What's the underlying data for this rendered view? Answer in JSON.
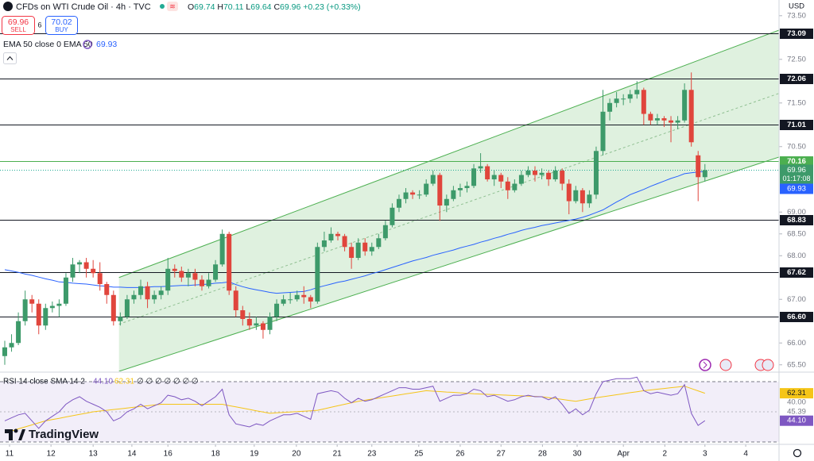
{
  "chart_data": {
    "type": "candlestick",
    "title": "CFDs on WTI Crude Oil · 4h · TVC",
    "ohlc": [
      {
        "key": "O",
        "value": "69.74"
      },
      {
        "key": "H",
        "value": "70.11"
      },
      {
        "key": "L",
        "value": "69.64"
      },
      {
        "key": "C",
        "value": "69.96"
      }
    ],
    "change": "+0.23 (+0.33%)",
    "sell": {
      "price": "69.96",
      "label": "SELL"
    },
    "spread": "6",
    "buy": {
      "price": "70.02",
      "label": "BUY"
    },
    "currency": "USD",
    "brand": "TradingView",
    "up_color": "#3d9a6a",
    "down_color": "#e0453c",
    "open": [
      65.7,
      65.9,
      66.0,
      66.5,
      67.0,
      66.9,
      66.4,
      66.8,
      66.85,
      66.9,
      67.5,
      67.8,
      67.85,
      67.7,
      67.6,
      67.35,
      67.1,
      66.5,
      66.6,
      67.0,
      67.1,
      67.3,
      67.0,
      67.1,
      67.2,
      67.7,
      67.65,
      67.5,
      67.6,
      67.45,
      67.3,
      67.45,
      67.8,
      68.5,
      67.2,
      66.75,
      66.55,
      66.4,
      66.45,
      66.3,
      66.6,
      66.9,
      67.0,
      67.0,
      67.1,
      67.05,
      66.95,
      68.2,
      68.35,
      68.5,
      68.45,
      68.2,
      67.95,
      68.3,
      68.1,
      68.2,
      68.4,
      68.7,
      69.1,
      69.3,
      69.45,
      69.4,
      69.4,
      69.65,
      69.85,
      69.15,
      69.3,
      69.5,
      69.55,
      69.6,
      70.0,
      70.05,
      69.75,
      69.85,
      69.7,
      69.5,
      69.65,
      69.85,
      69.95,
      69.85,
      69.9,
      69.75,
      69.95,
      69.65,
      69.25,
      69.5,
      69.2,
      69.4,
      70.4,
      71.3,
      71.5,
      71.6,
      71.6,
      71.7,
      71.8,
      71.25,
      71.1,
      71.15,
      71.1,
      71.05,
      71.1,
      71.8,
      70.3,
      69.8
    ],
    "high": [
      66.05,
      66.2,
      66.7,
      67.2,
      67.1,
      67.0,
      66.9,
      66.95,
      67.0,
      67.6,
      67.95,
      67.9,
      67.95,
      67.9,
      67.85,
      67.4,
      67.2,
      66.7,
      67.1,
      67.2,
      67.45,
      67.4,
      67.2,
      67.3,
      67.95,
      67.8,
      67.75,
      67.7,
      67.7,
      67.55,
      67.6,
      67.9,
      68.6,
      68.55,
      67.3,
      66.85,
      66.7,
      66.6,
      66.5,
      66.7,
      67.0,
      67.1,
      67.15,
      67.2,
      67.3,
      67.1,
      68.3,
      68.55,
      68.65,
      68.55,
      68.5,
      68.3,
      68.4,
      68.4,
      68.3,
      68.5,
      68.8,
      69.2,
      69.4,
      69.55,
      69.5,
      69.5,
      69.75,
      69.95,
      69.9,
      69.4,
      69.6,
      69.65,
      69.7,
      70.1,
      70.35,
      70.1,
      69.95,
      69.9,
      69.8,
      69.75,
      69.95,
      70.05,
      70.05,
      70.0,
      69.95,
      70.05,
      70.0,
      69.75,
      69.6,
      69.55,
      69.5,
      70.5,
      71.8,
      71.6,
      71.75,
      71.7,
      71.8,
      72.0,
      71.85,
      71.3,
      71.25,
      71.2,
      71.2,
      71.2,
      71.95,
      72.2,
      70.4,
      70.1
    ],
    "low": [
      65.5,
      65.8,
      65.95,
      66.4,
      66.7,
      66.2,
      66.3,
      66.7,
      66.6,
      66.85,
      67.4,
      67.6,
      67.5,
      67.5,
      67.2,
      66.9,
      66.4,
      66.4,
      66.55,
      66.9,
      67.0,
      66.8,
      66.9,
      67.0,
      67.1,
      67.5,
      67.4,
      67.3,
      67.3,
      67.2,
      67.25,
      67.4,
      67.75,
      67.1,
      66.6,
      66.4,
      66.3,
      66.3,
      66.1,
      66.2,
      66.5,
      66.85,
      66.9,
      66.95,
      66.9,
      66.8,
      66.9,
      68.1,
      68.3,
      68.35,
      68.1,
      67.7,
      67.9,
      68.0,
      68.0,
      68.15,
      68.35,
      68.65,
      69.0,
      69.2,
      69.3,
      69.3,
      69.35,
      69.6,
      68.8,
      69.0,
      69.25,
      69.35,
      69.45,
      69.55,
      69.9,
      69.7,
      69.6,
      69.55,
      69.3,
      69.45,
      69.6,
      69.8,
      69.7,
      69.75,
      69.6,
      69.7,
      69.5,
      68.95,
      69.2,
      69.0,
      69.1,
      69.3,
      70.3,
      71.1,
      71.4,
      71.45,
      71.5,
      71.6,
      71.0,
      71.0,
      71.0,
      70.95,
      70.6,
      70.9,
      71.05,
      70.5,
      69.25,
      69.7
    ],
    "close": [
      65.9,
      66.0,
      66.5,
      67.0,
      66.9,
      66.4,
      66.8,
      66.85,
      66.9,
      67.5,
      67.8,
      67.85,
      67.7,
      67.6,
      67.35,
      67.1,
      66.5,
      66.6,
      67.0,
      67.1,
      67.3,
      67.0,
      67.1,
      67.2,
      67.7,
      67.65,
      67.5,
      67.6,
      67.45,
      67.3,
      67.45,
      67.8,
      68.5,
      67.2,
      66.75,
      66.55,
      66.4,
      66.45,
      66.3,
      66.6,
      66.9,
      67.0,
      67.0,
      67.1,
      67.05,
      66.95,
      68.2,
      68.35,
      68.5,
      68.45,
      68.2,
      67.95,
      68.3,
      68.1,
      68.2,
      68.4,
      68.7,
      69.1,
      69.3,
      69.45,
      69.4,
      69.4,
      69.65,
      69.85,
      69.15,
      69.3,
      69.5,
      69.55,
      69.6,
      70.0,
      70.05,
      69.75,
      69.85,
      69.7,
      69.5,
      69.65,
      69.85,
      69.95,
      69.85,
      69.9,
      69.75,
      69.95,
      69.65,
      69.25,
      69.5,
      69.2,
      69.4,
      70.4,
      71.3,
      71.5,
      71.6,
      71.6,
      71.7,
      71.8,
      71.25,
      71.1,
      71.15,
      71.1,
      71.05,
      71.1,
      71.8,
      70.6,
      69.8,
      69.96
    ],
    "last_timer": "01:17:08",
    "ema": {
      "name": "EMA 50 close 0 EMA 50",
      "color": "#2962ff",
      "values": [
        67.68,
        67.65,
        67.62,
        67.58,
        67.55,
        67.51,
        67.47,
        67.44,
        67.4,
        67.39,
        67.37,
        67.36,
        67.35,
        67.33,
        67.31,
        67.3,
        67.28,
        67.28,
        67.27,
        67.27,
        67.27,
        67.28,
        67.29,
        67.29,
        67.3,
        67.31,
        67.32,
        67.32,
        67.33,
        67.34,
        67.35,
        67.37,
        67.38,
        67.4,
        67.34,
        67.29,
        67.25,
        67.22,
        67.19,
        67.16,
        67.14,
        67.15,
        67.16,
        67.17,
        67.18,
        67.22,
        67.27,
        67.31,
        67.35,
        67.39,
        67.42,
        67.46,
        67.5,
        67.54,
        67.59,
        67.63,
        67.68,
        67.73,
        67.78,
        67.83,
        67.88,
        67.92,
        67.96,
        68.01,
        68.05,
        68.09,
        68.13,
        68.18,
        68.22,
        68.26,
        68.31,
        68.35,
        68.4,
        68.44,
        68.49,
        68.53,
        68.58,
        68.62,
        68.65,
        68.69,
        68.72,
        68.75,
        68.78,
        68.81,
        68.84,
        68.88,
        68.93,
        68.99,
        69.05,
        69.14,
        69.23,
        69.31,
        69.4,
        69.46,
        69.52,
        69.59,
        69.65,
        69.71,
        69.77,
        69.82,
        69.88,
        69.9,
        69.92,
        69.93
      ]
    },
    "xlim": [
      -0.7,
      113.9
    ],
    "xticks": [
      {
        "value": 0.7,
        "label": "11"
      },
      {
        "value": 6.8,
        "label": "12"
      },
      {
        "value": 13.0,
        "label": "13"
      },
      {
        "value": 18.7,
        "label": "14"
      },
      {
        "value": 24.0,
        "label": "16"
      },
      {
        "value": 31.0,
        "label": "18"
      },
      {
        "value": 36.7,
        "label": "19"
      },
      {
        "value": 42.9,
        "label": "20"
      },
      {
        "value": 48.9,
        "label": "21"
      },
      {
        "value": 54.0,
        "label": "23"
      },
      {
        "value": 60.9,
        "label": "25"
      },
      {
        "value": 67.0,
        "label": "26"
      },
      {
        "value": 73.0,
        "label": "27"
      },
      {
        "value": 79.1,
        "label": "28"
      },
      {
        "value": 84.2,
        "label": "30"
      },
      {
        "value": 91.0,
        "label": "Apr"
      },
      {
        "value": 97.1,
        "label": "2"
      },
      {
        "value": 103.0,
        "label": "3"
      },
      {
        "value": 109.0,
        "label": "4"
      }
    ],
    "ylim": [
      65.35,
      73.86
    ],
    "yticks": [
      {
        "value": 73.5,
        "label": "73.50"
      },
      {
        "value": 72.5,
        "label": "72.50"
      },
      {
        "value": 71.5,
        "label": "71.50"
      },
      {
        "value": 70.5,
        "label": "70.50"
      },
      {
        "value": 69.0,
        "label": "69.00"
      },
      {
        "value": 68.5,
        "label": "68.50"
      },
      {
        "value": 68.0,
        "label": "68.00"
      },
      {
        "value": 67.0,
        "label": "67.00"
      },
      {
        "value": 66.0,
        "label": "66.00"
      },
      {
        "value": 65.5,
        "label": "65.50"
      }
    ],
    "levels": [
      {
        "value": 73.09,
        "color": "#131722"
      },
      {
        "value": 72.06,
        "color": "#131722"
      },
      {
        "value": 71.01,
        "color": "#131722"
      },
      {
        "value": 70.16,
        "color": "#4caf50"
      },
      {
        "value": 68.83,
        "color": "#131722"
      },
      {
        "value": 67.62,
        "color": "#131722"
      },
      {
        "value": {
          "value": 66.6,
          "label": "66.60"
        },
        "color": "#131722"
      }
    ],
    "channel": {
      "x": [
        16.8,
        113.9
      ],
      "upper": [
        67.5,
        73.17
      ],
      "middle": [
        66.43,
        71.72
      ],
      "lower": [
        65.35,
        70.26
      ],
      "color": "#4caf50"
    },
    "rsi": {
      "name": "RSI 14 close SMA 14 2",
      "color": "#7e57c2",
      "na": "∅ ∅ ∅ ∅ ∅ ∅ ∅",
      "values": [
        44,
        46,
        48,
        49,
        44,
        39,
        44,
        47,
        50,
        55,
        58,
        60,
        57,
        55,
        53,
        50,
        44,
        46,
        50,
        52,
        55,
        52,
        54,
        56,
        61,
        60,
        58,
        59,
        57,
        54,
        57,
        60,
        65,
        48,
        42,
        41,
        40,
        42,
        41,
        44,
        46,
        48,
        48,
        49,
        47,
        45,
        62,
        63,
        64,
        63,
        59,
        56,
        59,
        57,
        58,
        60,
        62,
        64,
        66,
        66,
        65,
        65,
        66,
        67,
        57,
        59,
        61,
        61,
        62,
        65,
        64,
        60,
        61,
        59,
        57,
        58,
        60,
        61,
        60,
        60,
        58,
        60,
        55,
        49,
        52,
        48,
        51,
        62,
        70,
        71,
        72,
        72,
        72,
        73,
        64,
        62,
        63,
        62,
        61,
        62,
        68,
        49,
        41,
        44.1
      ],
      "value_label": "44.10",
      "sma": {
        "color": "#f5c518",
        "values": [
          36,
          37.3,
          38.7,
          40,
          41.3,
          42.7,
          44,
          44.9,
          45.7,
          46.6,
          47.4,
          48.3,
          49.1,
          50,
          50.5,
          51,
          51.5,
          52,
          52.5,
          53,
          53.5,
          54,
          54.5,
          55,
          55,
          55,
          55,
          55,
          55,
          55,
          55,
          55,
          55,
          54.1,
          53.3,
          52.4,
          51.6,
          50.7,
          49.9,
          49,
          49.3,
          49.6,
          49.9,
          50.1,
          50.4,
          50.7,
          51,
          52,
          53,
          54,
          55,
          56,
          57,
          57.7,
          58.4,
          59.1,
          59.8,
          60.5,
          61.2,
          61.9,
          62.6,
          63.3,
          64,
          63.7,
          63.4,
          63.1,
          62.9,
          62.6,
          62.3,
          62,
          61.8,
          61.6,
          61.4,
          61.2,
          61,
          60.8,
          60.6,
          60.4,
          60.2,
          60,
          59.4,
          58.8,
          58.2,
          57.6,
          57,
          57.8,
          58.5,
          59.3,
          60,
          60.7,
          61.3,
          62,
          62.7,
          63.3,
          64,
          64.5,
          65,
          65.5,
          66,
          66.5,
          67,
          65.4,
          63.9,
          62.31
        ]
      },
      "ylim": [
        28.42,
        75.79
      ],
      "bands": [
        70,
        50,
        30
      ],
      "yticks": [
        {
          "value": 45.39,
          "label": "45.39"
        },
        {
          "value": 40,
          "label": "40.00"
        }
      ]
    }
  }
}
